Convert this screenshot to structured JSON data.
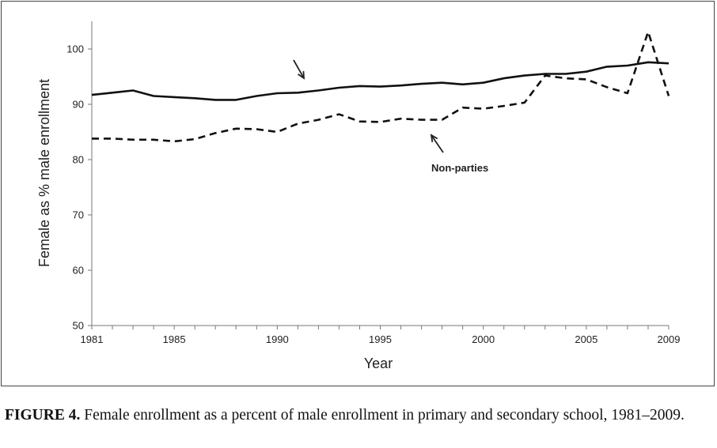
{
  "chart_data": {
    "type": "line",
    "title": "",
    "xlabel": "Year",
    "ylabel": "Female as % male enrollment",
    "xlim": [
      1981,
      2009
    ],
    "ylim": [
      50,
      105
    ],
    "yticks": [
      50,
      60,
      70,
      80,
      90,
      100
    ],
    "xticks": [
      1981,
      1985,
      1990,
      1995,
      2000,
      2005,
      2009
    ],
    "grid": false,
    "legend": "none",
    "x": [
      1981,
      1982,
      1983,
      1984,
      1985,
      1986,
      1987,
      1988,
      1989,
      1990,
      1991,
      1992,
      1993,
      1994,
      1995,
      1996,
      1997,
      1998,
      1999,
      2000,
      2001,
      2002,
      2003,
      2004,
      2005,
      2006,
      2007,
      2008,
      2009
    ],
    "series": [
      {
        "style": "solid",
        "color": "#111111",
        "values": [
          91.7,
          92.1,
          92.5,
          91.5,
          91.3,
          91.1,
          90.8,
          90.8,
          91.5,
          92.0,
          92.1,
          92.5,
          93.0,
          93.3,
          93.2,
          93.4,
          93.7,
          93.9,
          93.6,
          93.9,
          94.7,
          95.2,
          95.5,
          95.5,
          95.9,
          96.8,
          97.0,
          97.6,
          97.4
        ]
      },
      {
        "name": "Non-parties",
        "style": "dashed",
        "color": "#111111",
        "values": [
          83.8,
          83.8,
          83.6,
          83.6,
          83.3,
          83.7,
          84.8,
          85.6,
          85.5,
          85.0,
          86.5,
          87.2,
          88.2,
          86.9,
          86.8,
          87.4,
          87.2,
          87.2,
          89.4,
          89.2,
          89.7,
          90.3,
          95.2,
          94.7,
          94.5,
          93.1,
          92.0,
          103.1,
          91.5
        ]
      }
    ],
    "annotations": [
      {
        "text": "",
        "arrow": "down-right",
        "points_to": "solid line near 1991"
      },
      {
        "text": "Non-parties",
        "arrow": "up-left",
        "points_to": "dashed line near 1998"
      }
    ]
  },
  "caption": {
    "label": "FIGURE 4.",
    "text": " Female enrollment as a percent of male enrollment in primary and secondary school, 1981–2009."
  }
}
